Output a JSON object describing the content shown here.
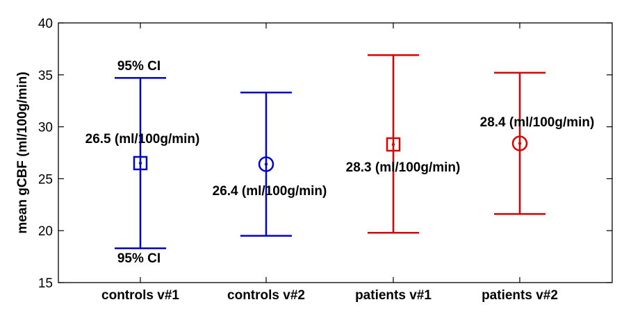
{
  "chart_data": {
    "type": "errorbar",
    "title": "",
    "xlabel": "",
    "ylabel": "mean gCBF (ml/100g/min)",
    "ylim": [
      15,
      40
    ],
    "yticks": [
      "15",
      "20",
      "25",
      "30",
      "35",
      "40"
    ],
    "categories": [
      "controls v#1",
      "controls v#2",
      "patients v#1",
      "patients v#2"
    ],
    "points": [
      {
        "category": "controls v#1",
        "mean": 26.5,
        "lower": 18.3,
        "upper": 34.7,
        "marker": "square",
        "color": "#0000cc"
      },
      {
        "category": "controls v#2",
        "mean": 26.4,
        "lower": 19.5,
        "upper": 33.3,
        "marker": "circle",
        "color": "#0000cc"
      },
      {
        "category": "patients v#1",
        "mean": 28.3,
        "lower": 19.8,
        "upper": 36.9,
        "marker": "square",
        "color": "#dd0000"
      },
      {
        "category": "patients v#2",
        "mean": 28.4,
        "lower": 21.6,
        "upper": 35.2,
        "marker": "circle",
        "color": "#dd0000"
      }
    ],
    "annotations": [
      "95% CI",
      "95% CI",
      "26.5 (ml/100g/min)",
      "26.4 (ml/100g/min)",
      "28.3 (ml/100g/min)",
      "28.4 (ml/100g/min)"
    ]
  }
}
